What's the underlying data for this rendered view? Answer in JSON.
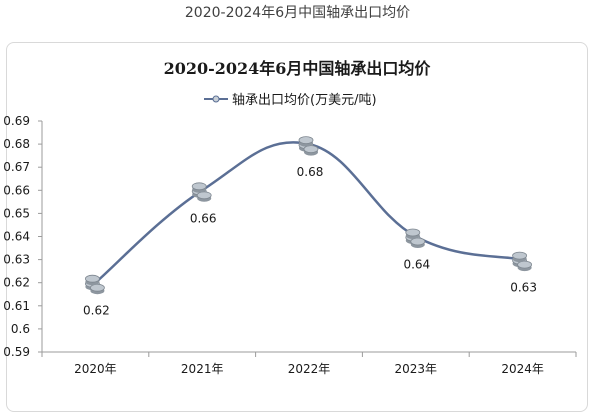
{
  "page": {
    "title": "2020-2024年6月中国轴承出口均价"
  },
  "chart_data": {
    "type": "line",
    "title": "2020-2024年6月中国轴承出口均价",
    "legend": {
      "label": "轴承出口均价(万美元/吨)",
      "position": "top"
    },
    "categories": [
      "2020年",
      "2021年",
      "2022年",
      "2023年",
      "2024年"
    ],
    "series": [
      {
        "name": "轴承出口均价(万美元/吨)",
        "values": [
          0.62,
          0.66,
          0.68,
          0.64,
          0.63
        ]
      }
    ],
    "data_labels": [
      "0.62",
      "0.66",
      "0.68",
      "0.64",
      "0.63"
    ],
    "y_ticks": [
      "0.69",
      "0.68",
      "0.67",
      "0.66",
      "0.65",
      "0.64",
      "0.63",
      "0.62",
      "0.61",
      "0.6",
      "0.59"
    ],
    "ylim": [
      0.59,
      0.69
    ],
    "grid": false,
    "smooth": true,
    "marker": "coin-stack",
    "colors": {
      "line": "#5b6f95",
      "axis": "#9b9b9b",
      "text": "#1a1a1a",
      "coin": "#bfc7cf"
    }
  }
}
